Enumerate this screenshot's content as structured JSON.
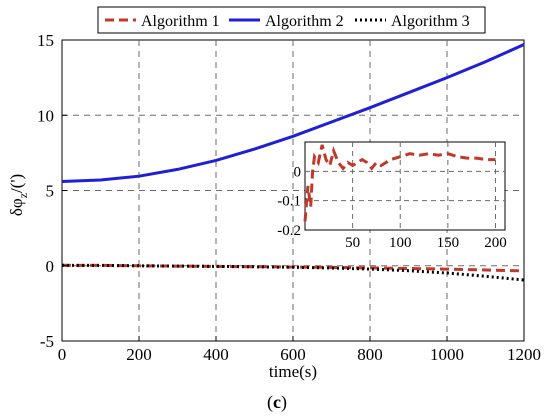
{
  "caption": {
    "open": "(",
    "letter": "c",
    "close": ")"
  },
  "chart_data": {
    "type": "line",
    "xlabel": "time(s)",
    "ylabel": {
      "base": "δφ",
      "sub": "z",
      "suffix": "/(')"
    },
    "xlim": [
      0,
      1200
    ],
    "ylim": [
      -5,
      15
    ],
    "xticks": [
      0,
      200,
      400,
      600,
      800,
      1000,
      1200
    ],
    "yticks": [
      -5,
      0,
      5,
      10,
      15
    ],
    "grid": true,
    "legend_position": "top",
    "series": [
      {
        "name": "Algorithm 1",
        "color": "#c0392b",
        "style": "dashed",
        "x": [
          0,
          100,
          200,
          300,
          400,
          500,
          600,
          700,
          800,
          900,
          1000,
          1100,
          1200
        ],
        "y": [
          0.03,
          0.02,
          0.0,
          -0.02,
          -0.04,
          -0.06,
          -0.08,
          -0.11,
          -0.14,
          -0.18,
          -0.22,
          -0.28,
          -0.34
        ]
      },
      {
        "name": "Algorithm 2",
        "color": "#1f1fd6",
        "style": "solid",
        "x": [
          0,
          100,
          200,
          300,
          400,
          500,
          600,
          700,
          800,
          900,
          1000,
          1100,
          1200
        ],
        "y": [
          5.6,
          5.7,
          5.95,
          6.4,
          7.0,
          7.75,
          8.6,
          9.55,
          10.5,
          11.5,
          12.5,
          13.55,
          14.7
        ]
      },
      {
        "name": "Algorithm 3",
        "color": "#000000",
        "style": "dotted",
        "x": [
          0,
          100,
          200,
          300,
          400,
          500,
          600,
          700,
          800,
          900,
          1000,
          1100,
          1200
        ],
        "y": [
          0.03,
          0.02,
          0.0,
          -0.02,
          -0.04,
          -0.07,
          -0.1,
          -0.15,
          -0.22,
          -0.33,
          -0.48,
          -0.7,
          -0.95
        ]
      }
    ],
    "inset": {
      "xlim": [
        0,
        210
      ],
      "ylim": [
        -0.2,
        0.1
      ],
      "xticks": [
        50,
        100,
        150,
        200
      ],
      "yticks": [
        0,
        -0.1,
        -0.2
      ],
      "grid": true,
      "series_index": 0,
      "x": [
        0,
        3,
        6,
        8,
        10,
        14,
        18,
        22,
        26,
        30,
        35,
        40,
        45,
        50,
        55,
        60,
        65,
        70,
        75,
        80,
        90,
        100,
        110,
        120,
        130,
        140,
        150,
        160,
        170,
        180,
        190,
        200
      ],
      "y": [
        -0.17,
        -0.05,
        -0.12,
        0.0,
        0.05,
        0.03,
        0.09,
        0.04,
        0.02,
        0.07,
        0.03,
        0.01,
        0.03,
        0.02,
        0.03,
        0.04,
        0.03,
        0.01,
        0.03,
        0.02,
        0.04,
        0.05,
        0.06,
        0.055,
        0.06,
        0.055,
        0.06,
        0.05,
        0.045,
        0.045,
        0.04,
        0.04
      ]
    }
  }
}
